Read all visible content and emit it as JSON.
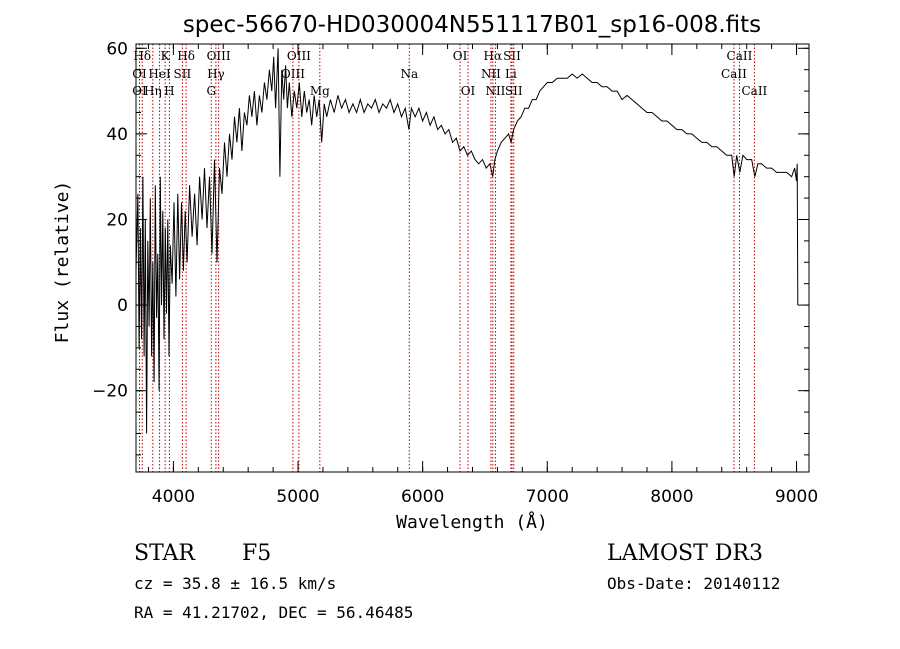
{
  "chart_data": {
    "type": "line",
    "title": "spec-56670-HD030004N551117B01_sp16-008.fits",
    "xlabel": "Wavelength (Å)",
    "ylabel": "Flux (relative)",
    "xlim": [
      3700,
      9100
    ],
    "ylim": [
      -39,
      61
    ],
    "xticks": [
      4000,
      5000,
      6000,
      7000,
      8000,
      9000
    ],
    "yticks": [
      -20,
      0,
      20,
      40,
      60
    ],
    "x_minor_step": 200,
    "y_minor_step": 5,
    "series": [
      {
        "name": "flux",
        "points": [
          [
            3700,
            8
          ],
          [
            3715,
            26
          ],
          [
            3725,
            -10
          ],
          [
            3735,
            18
          ],
          [
            3745,
            -8
          ],
          [
            3755,
            30
          ],
          [
            3765,
            -12
          ],
          [
            3775,
            20
          ],
          [
            3785,
            -30
          ],
          [
            3795,
            15
          ],
          [
            3805,
            -5
          ],
          [
            3815,
            25
          ],
          [
            3825,
            -12
          ],
          [
            3835,
            10
          ],
          [
            3845,
            -18
          ],
          [
            3855,
            28
          ],
          [
            3865,
            -3
          ],
          [
            3875,
            12
          ],
          [
            3885,
            -20
          ],
          [
            3895,
            30
          ],
          [
            3905,
            0
          ],
          [
            3915,
            22
          ],
          [
            3925,
            -8
          ],
          [
            3935,
            18
          ],
          [
            3945,
            -2
          ],
          [
            3955,
            20
          ],
          [
            3965,
            -12
          ],
          [
            3975,
            14
          ],
          [
            3990,
            5
          ],
          [
            4005,
            24
          ],
          [
            4020,
            2
          ],
          [
            4035,
            26
          ],
          [
            4050,
            6
          ],
          [
            4065,
            24
          ],
          [
            4080,
            8
          ],
          [
            4095,
            22
          ],
          [
            4110,
            10
          ],
          [
            4130,
            28
          ],
          [
            4150,
            16
          ],
          [
            4170,
            26
          ],
          [
            4190,
            14
          ],
          [
            4210,
            30
          ],
          [
            4230,
            20
          ],
          [
            4250,
            32
          ],
          [
            4270,
            18
          ],
          [
            4290,
            30
          ],
          [
            4310,
            12
          ],
          [
            4330,
            34
          ],
          [
            4350,
            10
          ],
          [
            4370,
            32
          ],
          [
            4390,
            26
          ],
          [
            4410,
            38
          ],
          [
            4430,
            30
          ],
          [
            4450,
            40
          ],
          [
            4470,
            34
          ],
          [
            4490,
            44
          ],
          [
            4510,
            38
          ],
          [
            4530,
            46
          ],
          [
            4550,
            36
          ],
          [
            4570,
            45
          ],
          [
            4590,
            42
          ],
          [
            4610,
            49
          ],
          [
            4630,
            44
          ],
          [
            4650,
            50
          ],
          [
            4670,
            42
          ],
          [
            4690,
            49
          ],
          [
            4710,
            45
          ],
          [
            4730,
            52
          ],
          [
            4750,
            48
          ],
          [
            4770,
            55
          ],
          [
            4790,
            50
          ],
          [
            4805,
            58
          ],
          [
            4820,
            46
          ],
          [
            4840,
            60
          ],
          [
            4855,
            30
          ],
          [
            4870,
            55
          ],
          [
            4885,
            48
          ],
          [
            4900,
            56
          ],
          [
            4915,
            46
          ],
          [
            4930,
            52
          ],
          [
            4950,
            44
          ],
          [
            4970,
            50
          ],
          [
            4990,
            46
          ],
          [
            5010,
            52
          ],
          [
            5030,
            44
          ],
          [
            5050,
            50
          ],
          [
            5070,
            45
          ],
          [
            5090,
            48
          ],
          [
            5110,
            42
          ],
          [
            5130,
            49
          ],
          [
            5150,
            44
          ],
          [
            5170,
            48
          ],
          [
            5190,
            38
          ],
          [
            5210,
            47
          ],
          [
            5230,
            44
          ],
          [
            5260,
            48
          ],
          [
            5290,
            45
          ],
          [
            5320,
            49
          ],
          [
            5350,
            46
          ],
          [
            5380,
            48
          ],
          [
            5410,
            45
          ],
          [
            5440,
            47
          ],
          [
            5470,
            45
          ],
          [
            5500,
            48
          ],
          [
            5530,
            45
          ],
          [
            5560,
            47
          ],
          [
            5590,
            46
          ],
          [
            5620,
            48
          ],
          [
            5650,
            45
          ],
          [
            5680,
            47
          ],
          [
            5710,
            46
          ],
          [
            5740,
            48
          ],
          [
            5770,
            45
          ],
          [
            5800,
            47
          ],
          [
            5830,
            44
          ],
          [
            5860,
            46
          ],
          [
            5890,
            41
          ],
          [
            5910,
            46
          ],
          [
            5940,
            44
          ],
          [
            5970,
            46
          ],
          [
            6000,
            43
          ],
          [
            6030,
            45
          ],
          [
            6060,
            42
          ],
          [
            6090,
            44
          ],
          [
            6120,
            41
          ],
          [
            6150,
            42
          ],
          [
            6180,
            40
          ],
          [
            6210,
            41
          ],
          [
            6240,
            38
          ],
          [
            6270,
            39
          ],
          [
            6300,
            36
          ],
          [
            6330,
            37
          ],
          [
            6360,
            35
          ],
          [
            6390,
            36
          ],
          [
            6420,
            34
          ],
          [
            6450,
            33
          ],
          [
            6480,
            34
          ],
          [
            6510,
            32
          ],
          [
            6540,
            33
          ],
          [
            6562,
            30
          ],
          [
            6580,
            34
          ],
          [
            6600,
            36
          ],
          [
            6630,
            38
          ],
          [
            6660,
            39
          ],
          [
            6690,
            40
          ],
          [
            6710,
            38
          ],
          [
            6730,
            41
          ],
          [
            6760,
            43
          ],
          [
            6790,
            44
          ],
          [
            6820,
            46
          ],
          [
            6850,
            46
          ],
          [
            6880,
            48
          ],
          [
            6910,
            48
          ],
          [
            6940,
            50
          ],
          [
            6970,
            51
          ],
          [
            7000,
            52
          ],
          [
            7040,
            52
          ],
          [
            7080,
            53
          ],
          [
            7120,
            53
          ],
          [
            7160,
            53
          ],
          [
            7200,
            54
          ],
          [
            7240,
            53
          ],
          [
            7280,
            54
          ],
          [
            7320,
            53
          ],
          [
            7360,
            52
          ],
          [
            7400,
            52
          ],
          [
            7440,
            51
          ],
          [
            7480,
            51
          ],
          [
            7520,
            50
          ],
          [
            7560,
            50
          ],
          [
            7600,
            48
          ],
          [
            7640,
            49
          ],
          [
            7680,
            48
          ],
          [
            7720,
            47
          ],
          [
            7760,
            46
          ],
          [
            7800,
            45
          ],
          [
            7840,
            45
          ],
          [
            7880,
            44
          ],
          [
            7920,
            43
          ],
          [
            7960,
            43
          ],
          [
            8000,
            42
          ],
          [
            8040,
            41
          ],
          [
            8080,
            41
          ],
          [
            8120,
            40
          ],
          [
            8160,
            40
          ],
          [
            8200,
            39
          ],
          [
            8240,
            38
          ],
          [
            8280,
            38
          ],
          [
            8320,
            37
          ],
          [
            8360,
            37
          ],
          [
            8400,
            36
          ],
          [
            8440,
            35
          ],
          [
            8480,
            35
          ],
          [
            8500,
            30
          ],
          [
            8520,
            35
          ],
          [
            8545,
            31
          ],
          [
            8570,
            35
          ],
          [
            8600,
            34
          ],
          [
            8640,
            34
          ],
          [
            8665,
            30
          ],
          [
            8690,
            33
          ],
          [
            8720,
            33
          ],
          [
            8760,
            32
          ],
          [
            8800,
            32
          ],
          [
            8840,
            31
          ],
          [
            8880,
            31
          ],
          [
            8920,
            31
          ],
          [
            8960,
            30
          ],
          [
            8985,
            32
          ],
          [
            9000,
            29
          ],
          [
            9005,
            33
          ],
          [
            9010,
            0
          ]
        ]
      }
    ],
    "lines": [
      {
        "name": "Hδ",
        "wl": 3750,
        "row": 0
      },
      {
        "name": "OI",
        "wl": 3728,
        "row": 1
      },
      {
        "name": "OI",
        "wl": 3728,
        "row": 2
      },
      {
        "name": "K",
        "wl": 3934,
        "row": 0
      },
      {
        "name": "HeI",
        "wl": 3889,
        "row": 1
      },
      {
        "name": "Hη",
        "wl": 3835,
        "row": 2
      },
      {
        "name": "Hδ",
        "wl": 4102,
        "row": 0
      },
      {
        "name": "SII",
        "wl": 4072,
        "row": 1
      },
      {
        "name": "H",
        "wl": 3968,
        "row": 2
      },
      {
        "name": "OIII",
        "wl": 4363,
        "row": 0
      },
      {
        "name": "Hγ",
        "wl": 4341,
        "row": 1
      },
      {
        "name": "G",
        "wl": 4304,
        "row": 2
      },
      {
        "name": "OIII",
        "wl": 5007,
        "row": 0
      },
      {
        "name": "OIII",
        "wl": 4959,
        "row": 1
      },
      {
        "name": "Mg",
        "wl": 5175,
        "row": 2
      },
      {
        "name": "Na",
        "wl": 5893,
        "row": 1
      },
      {
        "name": "OI",
        "wl": 6300,
        "row": 0
      },
      {
        "name": "OI",
        "wl": 6364,
        "row": 2
      },
      {
        "name": "Hα",
        "wl": 6563,
        "row": 0
      },
      {
        "name": "SII",
        "wl": 6717,
        "row": 0
      },
      {
        "name": "NII",
        "wl": 6548,
        "row": 1
      },
      {
        "name": "Li",
        "wl": 6708,
        "row": 1
      },
      {
        "name": "NII",
        "wl": 6584,
        "row": 2
      },
      {
        "name": "SII",
        "wl": 6731,
        "row": 2
      },
      {
        "name": "CaII",
        "wl": 8542,
        "row": 0
      },
      {
        "name": "CaII",
        "wl": 8498,
        "row": 1
      },
      {
        "name": "CaII",
        "wl": 8662,
        "row": 2
      }
    ],
    "colors": {
      "spectrum": "#000000",
      "line_marker": "#c00000"
    }
  },
  "info": {
    "class": "STAR",
    "subclass": "F5",
    "survey": "LAMOST DR3",
    "cz": "cz = 35.8 ± 16.5 km/s",
    "obs_date": "Obs-Date: 20140112",
    "coords": "RA =  41.21702, DEC =  56.46485"
  }
}
